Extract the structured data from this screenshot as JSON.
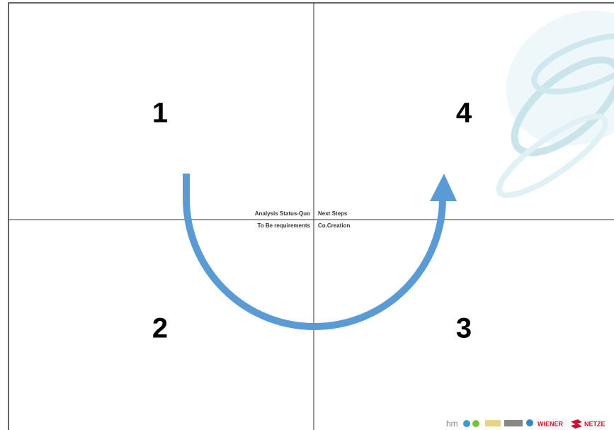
{
  "quadrants": {
    "top_left": "1",
    "top_right": "4",
    "bottom_left": "2",
    "bottom_right": "3"
  },
  "center_labels": {
    "top_left": "Analysis Status-Quo",
    "top_right": "Next Steps",
    "bottom_left": "To Be requirements",
    "bottom_right": "Co.Creation"
  },
  "logos": {
    "hm": "hm",
    "wiener": "WIENER",
    "netze": "NETZE"
  }
}
